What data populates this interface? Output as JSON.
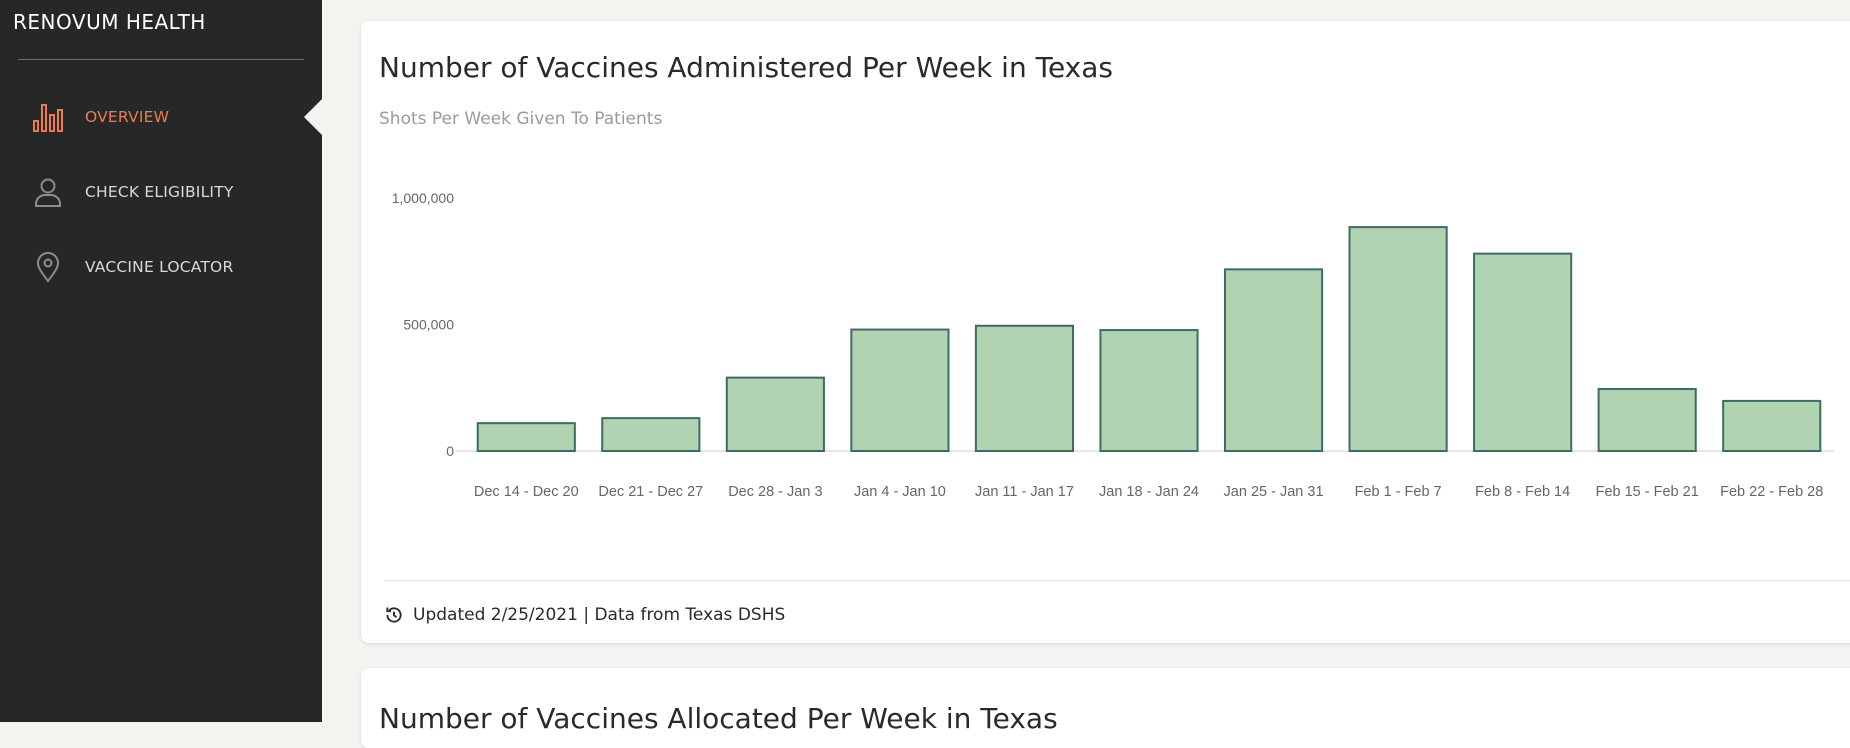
{
  "sidebar": {
    "brand": "RENOVUM HEALTH",
    "items": [
      {
        "label": "OVERVIEW",
        "icon": "bar-chart-icon",
        "active": true
      },
      {
        "label": "CHECK ELIGIBILITY",
        "icon": "user-icon",
        "active": false
      },
      {
        "label": "VACCINE LOCATOR",
        "icon": "map-pin-icon",
        "active": false
      }
    ]
  },
  "colors": {
    "sidebar_bg": "#252827",
    "accent": "#ef7a4f",
    "bar_fill": "#b1d3b1",
    "bar_stroke": "#3b6e62",
    "page_bg": "#f4f3ef"
  },
  "cards": [
    {
      "title": "Number of Vaccines Administered Per Week in Texas",
      "subtitle": "Shots Per Week Given To Patients",
      "footer": "Updated 2/25/2021 | Data from Texas DSHS",
      "footer_icon": "history-icon"
    },
    {
      "title": "Number of Vaccines Allocated Per Week in Texas"
    }
  ],
  "chart_data": {
    "type": "bar",
    "title": "Number of Vaccines Administered Per Week in Texas",
    "subtitle": "Shots Per Week Given To Patients",
    "categories": [
      "Dec 14 - Dec 20",
      "Dec 21 - Dec 27",
      "Dec 28 - Jan 3",
      "Jan 4 - Jan 10",
      "Jan 11 - Jan 17",
      "Jan 18 - Jan 24",
      "Jan 25 - Jan 31",
      "Feb 1 - Feb 7",
      "Feb 8 - Feb 14",
      "Feb 15 - Feb 21",
      "Feb 22 - Feb 28"
    ],
    "values": [
      110000,
      130000,
      290000,
      480000,
      495000,
      478000,
      718000,
      885000,
      780000,
      245000,
      198000
    ],
    "yticks": [
      0,
      500000,
      1000000
    ],
    "ytick_labels": [
      "0",
      "500,000",
      "1,000,000"
    ],
    "ylim": [
      0,
      1000000
    ],
    "xlabel": "",
    "ylabel": "",
    "grid": false,
    "legend": "none"
  }
}
